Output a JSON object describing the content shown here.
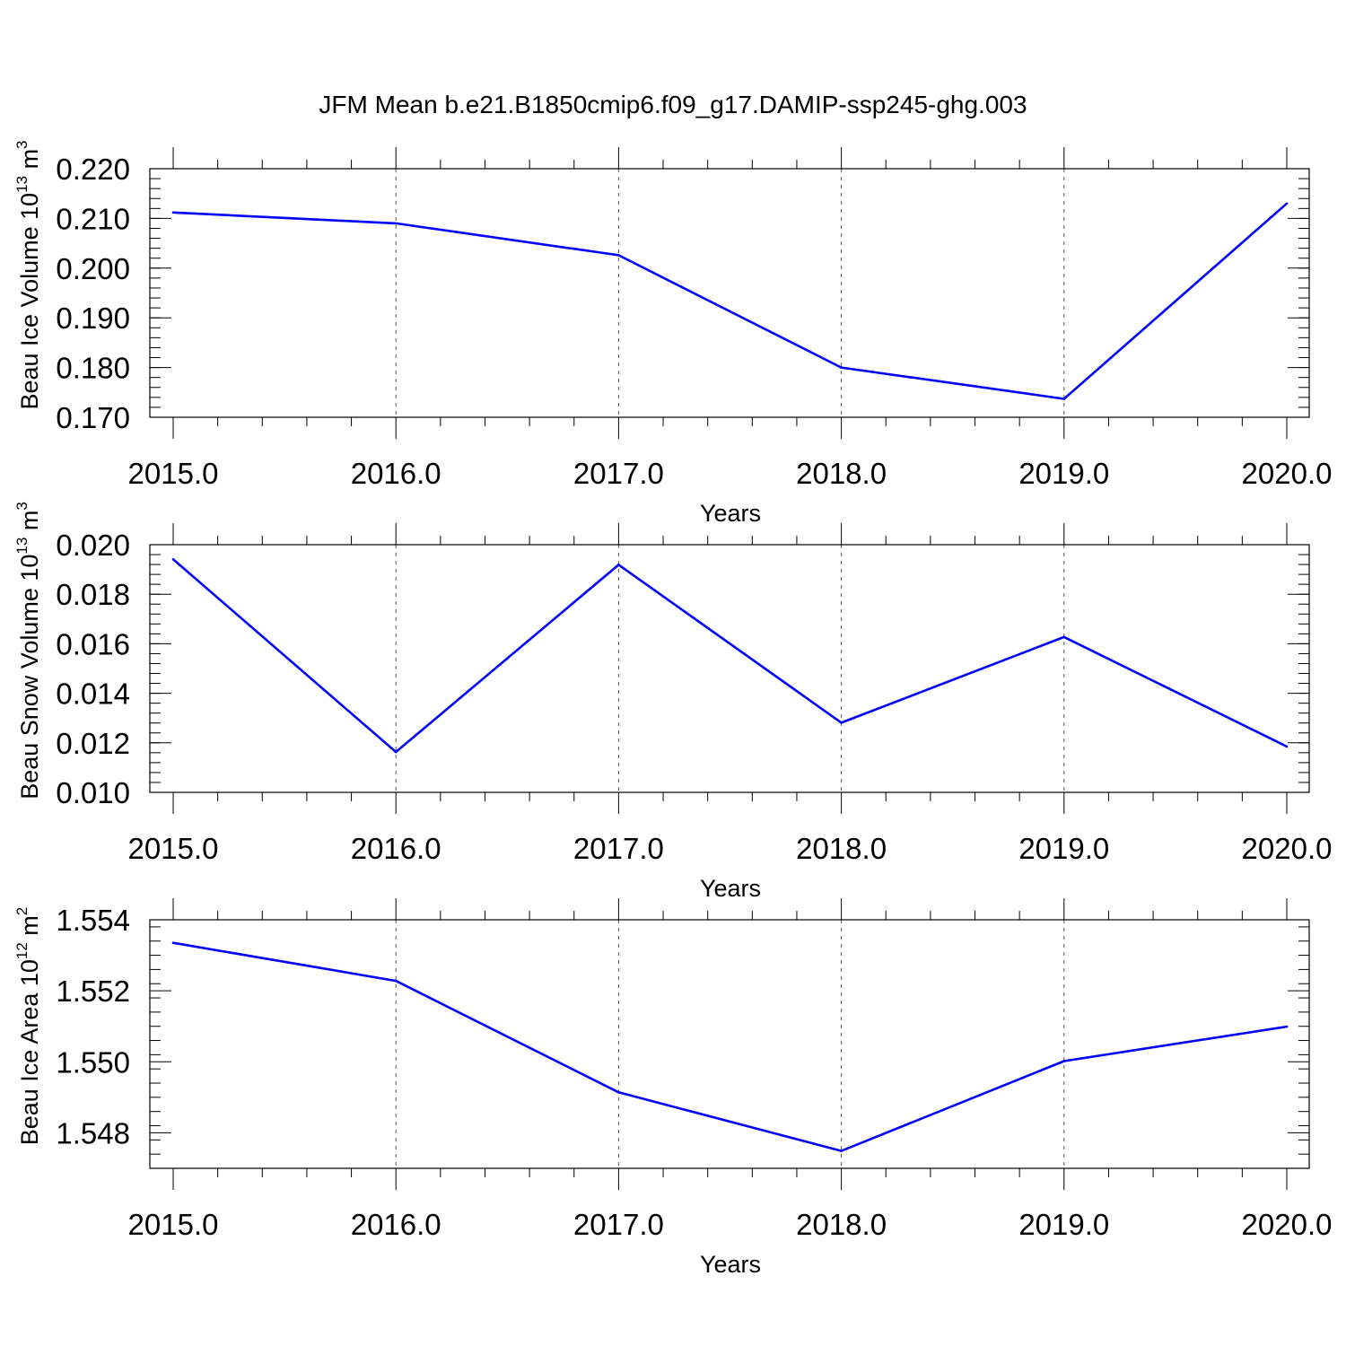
{
  "title": "JFM Mean b.e21.B1850cmip6.f09_g17.DAMIP-ssp245-ghg.003",
  "line_color": "#0000ff",
  "chart_data": [
    {
      "type": "line",
      "x": [
        2015.0,
        2016.0,
        2017.0,
        2018.0,
        2019.0,
        2020.0
      ],
      "values": [
        0.2112,
        0.209,
        0.2026,
        0.18,
        0.1737,
        0.213
      ],
      "xlabel": "Years",
      "ylabel": {
        "text": "Beau Ice Volume 10",
        "exp": "13",
        "unit": " m",
        "unit_exp": "3"
      },
      "xlim": [
        2015.0,
        2020.0
      ],
      "ylim": [
        0.17,
        0.22
      ],
      "yticks": [
        "0.170",
        "0.180",
        "0.190",
        "0.200",
        "0.210",
        "0.220"
      ],
      "xticks": [
        "2015.0",
        "2016.0",
        "2017.0",
        "2018.0",
        "2019.0",
        "2020.0"
      ],
      "grid": "vertical dashed"
    },
    {
      "type": "line",
      "x": [
        2015.0,
        2016.0,
        2017.0,
        2018.0,
        2019.0,
        2020.0
      ],
      "values": [
        0.01941,
        0.01163,
        0.01919,
        0.01281,
        0.01627,
        0.01185
      ],
      "xlabel": "Years",
      "ylabel": {
        "text": "Beau Snow Volume 10",
        "exp": "13",
        "unit": " m",
        "unit_exp": "3"
      },
      "xlim": [
        2015.0,
        2020.0
      ],
      "ylim": [
        0.01,
        0.02
      ],
      "yticks": [
        "0.010",
        "0.012",
        "0.014",
        "0.016",
        "0.018",
        "0.020"
      ],
      "xticks": [
        "2015.0",
        "2016.0",
        "2017.0",
        "2018.0",
        "2019.0",
        "2020.0"
      ],
      "grid": "vertical dashed"
    },
    {
      "type": "line",
      "x": [
        2015.0,
        2016.0,
        2017.0,
        2018.0,
        2019.0,
        2020.0
      ],
      "values": [
        1.55335,
        1.55228,
        1.54914,
        1.54749,
        1.55002,
        1.55099
      ],
      "xlabel": "Years",
      "ylabel": {
        "text": "Beau Ice Area 10",
        "exp": "12",
        "unit": " m",
        "unit_exp": "2"
      },
      "xlim": [
        2015.0,
        2020.0
      ],
      "ylim": [
        1.547,
        1.554
      ],
      "yticks": [
        "1.548",
        "1.550",
        "1.552",
        "1.554"
      ],
      "xticks": [
        "2015.0",
        "2016.0",
        "2017.0",
        "2018.0",
        "2019.0",
        "2020.0"
      ],
      "grid": "vertical dashed"
    }
  ]
}
